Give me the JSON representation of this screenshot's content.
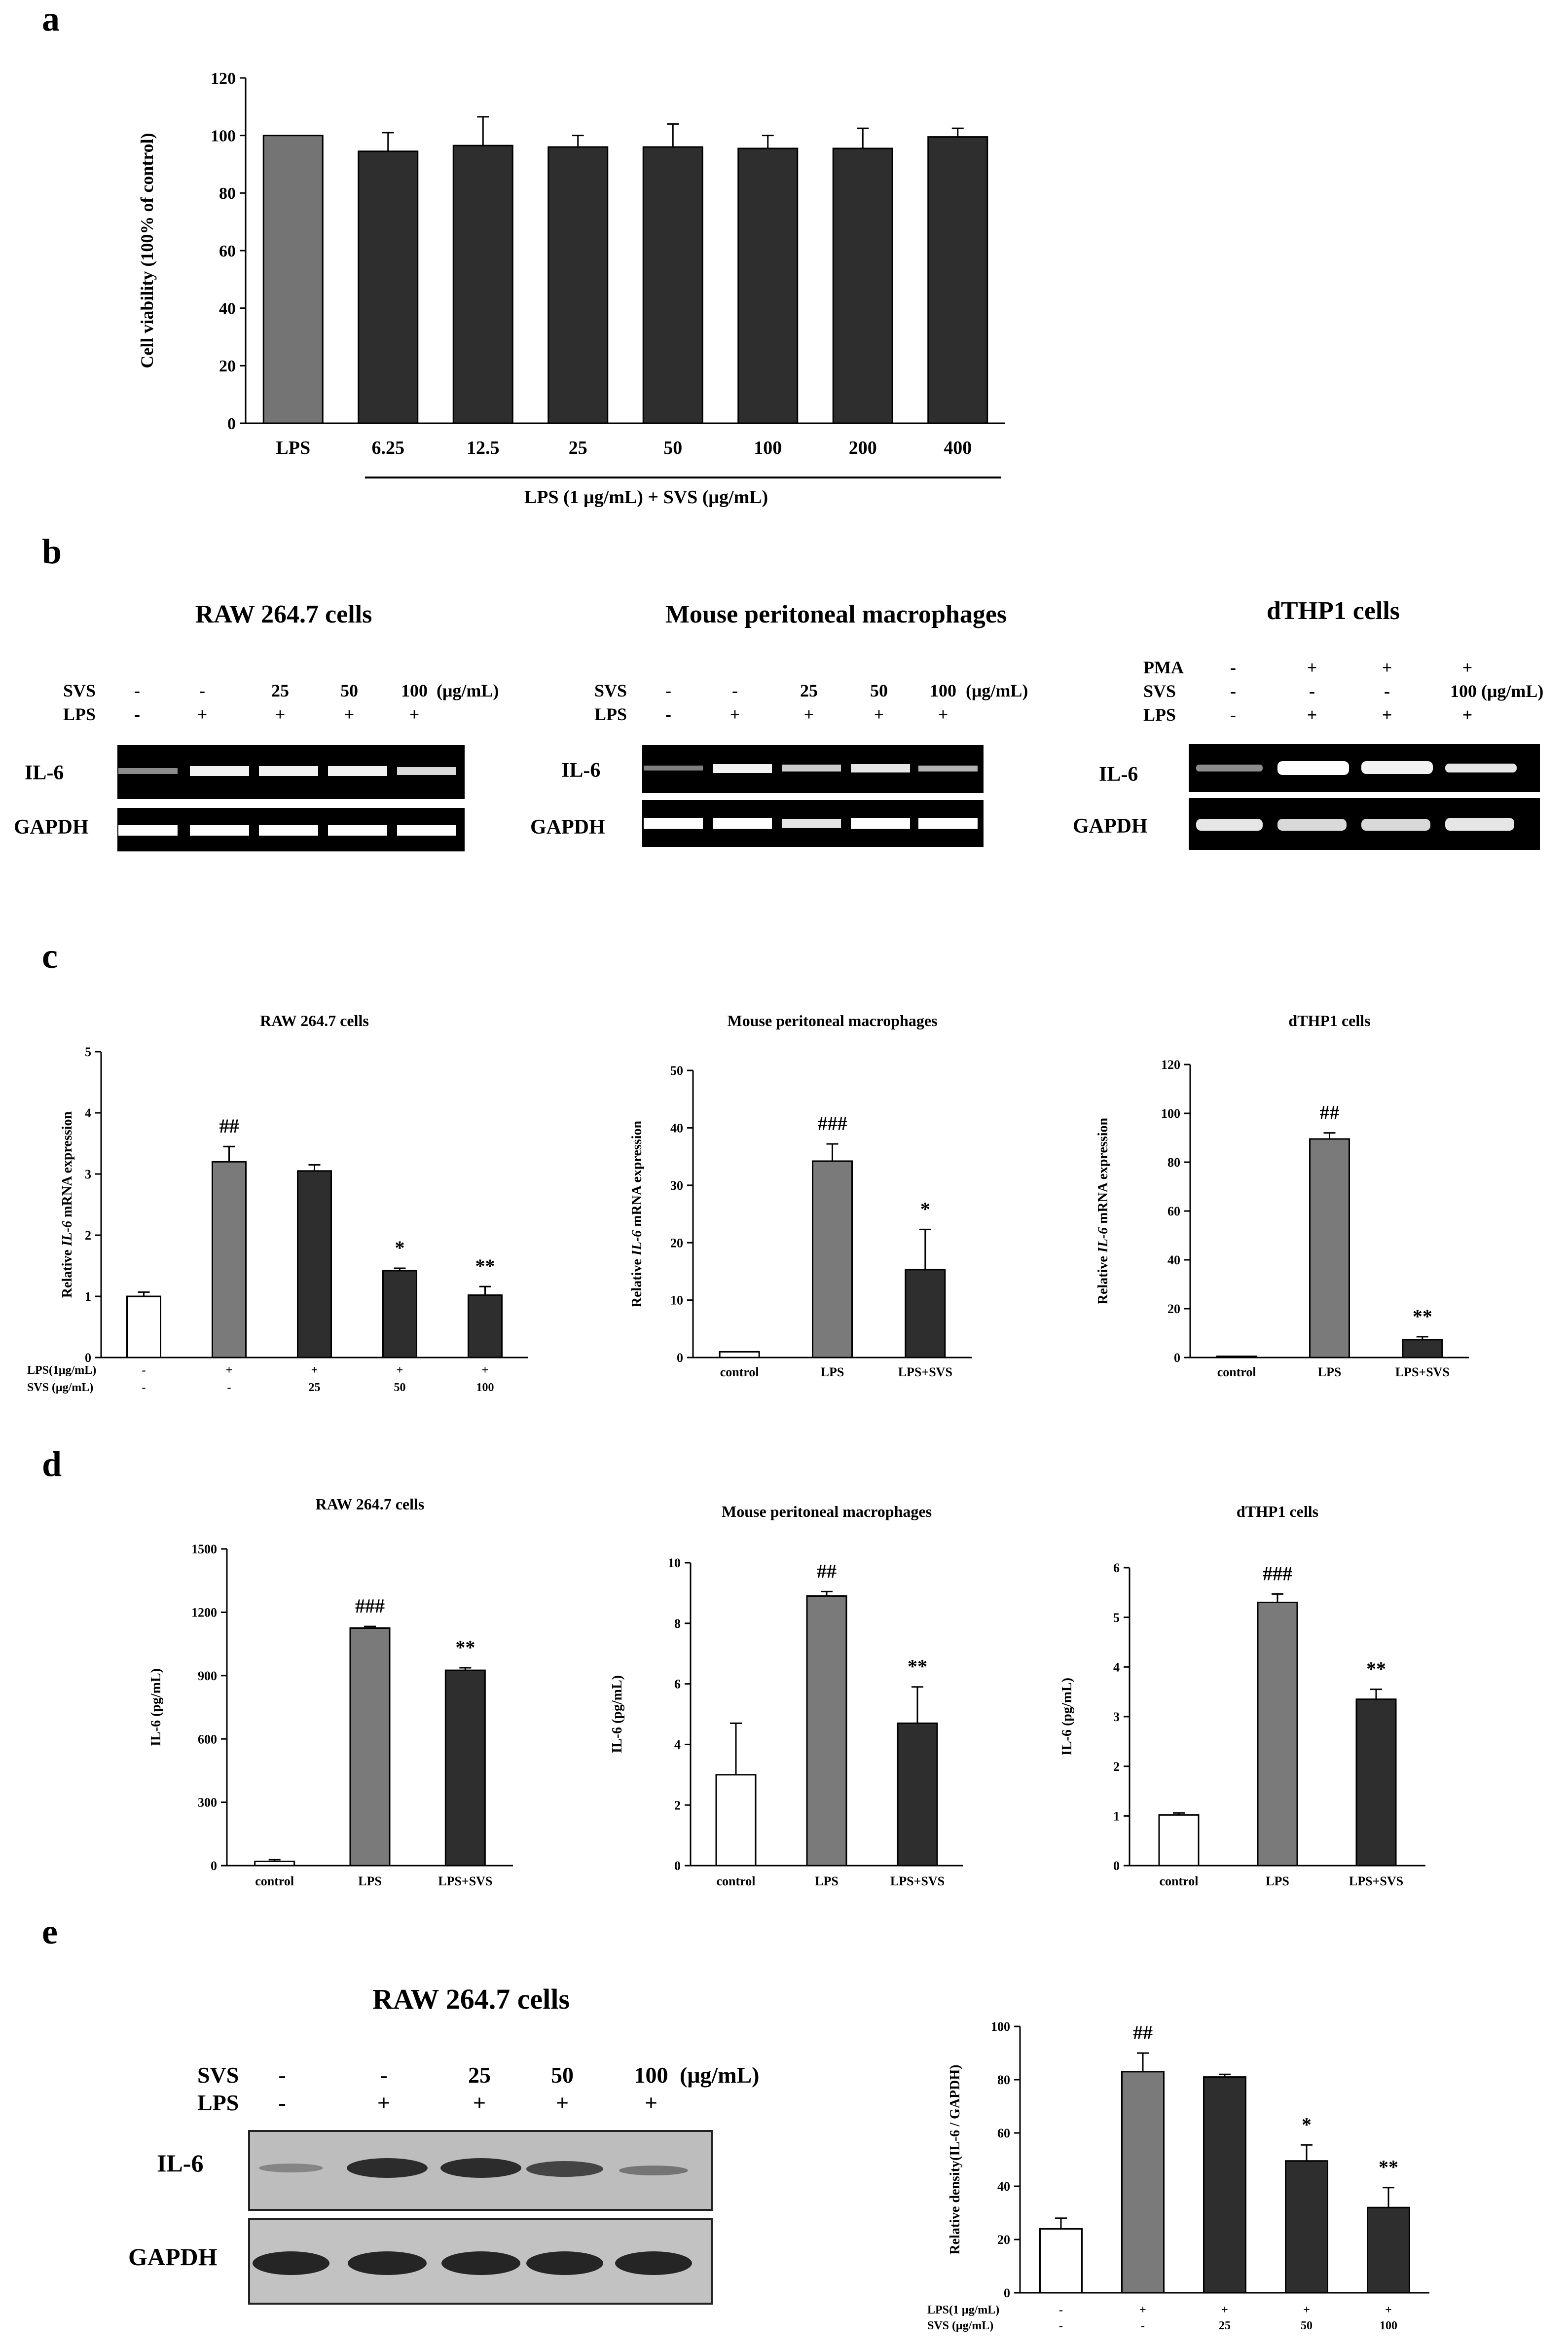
{
  "panel_labels": {
    "a": "a",
    "b": "b",
    "c": "c",
    "d": "d",
    "e": "e"
  },
  "colors": {
    "white": "#ffffff",
    "gray": "#7a7a7a",
    "dark": "#2e2e2e",
    "gray_a": "#747474",
    "black": "#000000"
  },
  "panel_a": {
    "underline_label": "LPS (1 μg/mL) + SVS (μg/mL)"
  },
  "panel_b": {
    "blots": [
      {
        "title": "RAW 264.7 cells",
        "rows": [
          {
            "label": "SVS",
            "values": [
              "-",
              "-",
              "25",
              "50",
              "100"
            ],
            "unit": "(μg/mL)"
          },
          {
            "label": "LPS",
            "values": [
              "-",
              "+",
              "+",
              "+",
              "+"
            ],
            "unit": ""
          }
        ],
        "bands": [
          "IL-6",
          "GAPDH"
        ]
      },
      {
        "title": "Mouse peritoneal macrophages",
        "rows": [
          {
            "label": "SVS",
            "values": [
              "-",
              "-",
              "25",
              "50",
              "100"
            ],
            "unit": "(μg/mL)"
          },
          {
            "label": "LPS",
            "values": [
              "-",
              "+",
              "+",
              "+",
              "+"
            ],
            "unit": ""
          }
        ],
        "bands": [
          "IL-6",
          "GAPDH"
        ]
      },
      {
        "title": "dTHP1 cells",
        "rows": [
          {
            "label": "PMA",
            "values": [
              "-",
              "+",
              "+",
              "+"
            ],
            "unit": ""
          },
          {
            "label": "SVS",
            "values": [
              "-",
              "-",
              "-",
              "100 (μg/mL)"
            ],
            "unit": ""
          },
          {
            "label": "LPS",
            "values": [
              "-",
              "+",
              "+",
              "+"
            ],
            "unit": ""
          }
        ],
        "bands": [
          "IL-6",
          "GAPDH"
        ]
      }
    ]
  },
  "panel_e_blot": {
    "title": "RAW 264.7 cells",
    "rows": [
      {
        "label": "SVS",
        "values": [
          "-",
          "-",
          "25",
          "50",
          "100"
        ],
        "unit": "(μg/mL)"
      },
      {
        "label": "LPS",
        "values": [
          "-",
          "+",
          "+",
          "+",
          "+"
        ],
        "unit": ""
      }
    ],
    "bands": [
      "IL-6",
      "GAPDH"
    ]
  },
  "chart_data": [
    {
      "id": "a",
      "type": "bar",
      "title": "",
      "ylabel": "Cell viability (100% of control)",
      "xlabel": "LPS (1 μg/mL) + SVS (μg/mL)",
      "categories": [
        "LPS",
        "6.25",
        "12.5",
        "25",
        "50",
        "100",
        "200",
        "400"
      ],
      "values": [
        100,
        94.5,
        96.5,
        96,
        96,
        95.5,
        95.5,
        99.5
      ],
      "errors": [
        0,
        6.5,
        10,
        4,
        8,
        4.5,
        7,
        3
      ],
      "colors": [
        "gray_a",
        "dark",
        "dark",
        "dark",
        "dark",
        "dark",
        "dark",
        "dark"
      ],
      "annotations": [
        "",
        "",
        "",
        "",
        "",
        "",
        "",
        ""
      ],
      "ylim": [
        0,
        120
      ],
      "yticks": [
        0,
        20,
        40,
        60,
        80,
        100,
        120
      ]
    },
    {
      "id": "c1",
      "type": "bar",
      "title": "RAW 264.7 cells",
      "ylabel": "Relative IL-6 mRNA expression",
      "categories": [
        "",
        "",
        "",
        "",
        ""
      ],
      "cond_rows": [
        {
          "label": "LPS(1μg/mL)",
          "values": [
            "-",
            "+",
            "+",
            "+",
            "+"
          ]
        },
        {
          "label": "SVS (μg/mL)",
          "values": [
            "-",
            "-",
            "25",
            "50",
            "100"
          ]
        }
      ],
      "values": [
        1.0,
        3.2,
        3.05,
        1.42,
        1.02
      ],
      "errors": [
        0.07,
        0.25,
        0.1,
        0.04,
        0.14
      ],
      "colors": [
        "white",
        "gray",
        "dark",
        "dark",
        "dark"
      ],
      "annotations": [
        "",
        "##",
        "",
        "*",
        "**"
      ],
      "ylim": [
        0,
        5
      ],
      "yticks": [
        0,
        1,
        2,
        3,
        4,
        5
      ]
    },
    {
      "id": "c2",
      "type": "bar",
      "title": "Mouse peritoneal macrophages",
      "ylabel": "Relative IL-6 mRNA expression",
      "categories": [
        "control",
        "LPS",
        "LPS+SVS"
      ],
      "values": [
        1.0,
        34.2,
        15.3
      ],
      "errors": [
        0,
        3,
        7
      ],
      "colors": [
        "white",
        "gray",
        "dark"
      ],
      "annotations": [
        "",
        "###",
        "*"
      ],
      "ylim": [
        0,
        50
      ],
      "yticks": [
        0,
        10,
        20,
        30,
        40,
        50
      ]
    },
    {
      "id": "c3",
      "type": "bar",
      "title": "dTHP1 cells",
      "ylabel": "Relative IL-6 mRNA expression",
      "categories": [
        "control",
        "LPS",
        "LPS+SVS"
      ],
      "values": [
        0.5,
        89.5,
        7.3
      ],
      "errors": [
        0,
        2.5,
        1.2
      ],
      "colors": [
        "white",
        "gray",
        "dark"
      ],
      "annotations": [
        "",
        "##",
        "**"
      ],
      "ylim": [
        0,
        120
      ],
      "yticks": [
        0,
        20,
        40,
        60,
        80,
        100,
        120
      ]
    },
    {
      "id": "d1",
      "type": "bar",
      "title": "RAW 264.7 cells",
      "ylabel": "IL-6 (pg/mL)",
      "categories": [
        "control",
        "LPS",
        "LPS+SVS"
      ],
      "values": [
        20,
        1125,
        925
      ],
      "errors": [
        8,
        8,
        12
      ],
      "colors": [
        "white",
        "gray",
        "dark"
      ],
      "annotations": [
        "",
        "###",
        "**"
      ],
      "ylim": [
        0,
        1500
      ],
      "yticks": [
        0,
        300,
        600,
        900,
        1200,
        1500
      ]
    },
    {
      "id": "d2",
      "type": "bar",
      "title": "Mouse peritoneal macrophages",
      "ylabel": "IL-6 (pg/mL)",
      "categories": [
        "control",
        "LPS",
        "LPS+SVS"
      ],
      "values": [
        3.0,
        8.9,
        4.7
      ],
      "errors": [
        1.7,
        0.15,
        1.2
      ],
      "colors": [
        "white",
        "gray",
        "dark"
      ],
      "annotations": [
        "",
        "##",
        "**"
      ],
      "ylim": [
        0,
        10
      ],
      "yticks": [
        0,
        2,
        4,
        6,
        8,
        10
      ]
    },
    {
      "id": "d3",
      "type": "bar",
      "title": "dTHP1 cells",
      "ylabel": "IL-6 (pg/mL)",
      "categories": [
        "control",
        "LPS",
        "LPS+SVS"
      ],
      "values": [
        1.02,
        5.3,
        3.35
      ],
      "errors": [
        0.04,
        0.17,
        0.2
      ],
      "colors": [
        "white",
        "gray",
        "dark"
      ],
      "annotations": [
        "",
        "###",
        "**"
      ],
      "ylim": [
        0,
        6
      ],
      "yticks": [
        0,
        1,
        2,
        3,
        4,
        5,
        6
      ]
    },
    {
      "id": "e",
      "type": "bar",
      "title": "",
      "ylabel": "Relative density(IL-6 / GAPDH)",
      "categories": [
        "",
        "",
        "",
        "",
        ""
      ],
      "cond_rows": [
        {
          "label": "LPS(1 μg/mL)",
          "values": [
            "-",
            "+",
            "+",
            "+",
            "+"
          ]
        },
        {
          "label": "SVS (μg/mL)",
          "values": [
            "-",
            "-",
            "25",
            "50",
            "100"
          ]
        }
      ],
      "values": [
        24,
        83,
        81,
        49.5,
        32
      ],
      "errors": [
        4,
        7,
        1,
        6,
        7.5
      ],
      "colors": [
        "white",
        "gray",
        "dark",
        "dark",
        "dark"
      ],
      "annotations": [
        "",
        "##",
        "",
        "*",
        "**"
      ],
      "ylim": [
        0,
        100
      ],
      "yticks": [
        0,
        20,
        40,
        60,
        80,
        100
      ]
    }
  ]
}
